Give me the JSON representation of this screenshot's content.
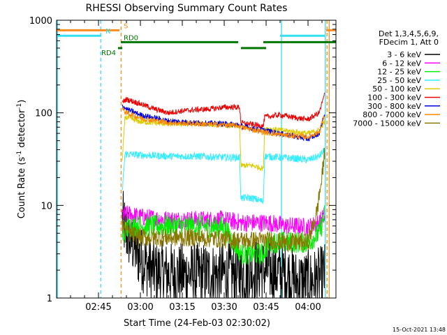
{
  "chart_data": {
    "type": "line",
    "title": "RHESSI Observing Summary Count Rates",
    "xlabel": "Start Time (24-Feb-03 02:30:02)",
    "ylabel_main": "Count Rate (s",
    "ylabel_sup1": "-1",
    "ylabel_mid": " detector",
    "ylabel_sup2": "-1",
    "ylabel_end": ")",
    "yscale": "log",
    "ylim": [
      1,
      1000
    ],
    "xlim_minutes": [
      0,
      100
    ],
    "x_ticks": [
      {
        "label": "02:45",
        "minute": 15
      },
      {
        "label": "03:00",
        "minute": 30
      },
      {
        "label": "03:15",
        "minute": 45
      },
      {
        "label": "03:30",
        "minute": 60
      },
      {
        "label": "03:45",
        "minute": 75
      },
      {
        "label": "04:00",
        "minute": 90
      }
    ],
    "y_ticks": [
      {
        "label": "1",
        "value": 1
      },
      {
        "label": "10",
        "value": 10
      },
      {
        "label": "100",
        "value": 100
      },
      {
        "label": "1000",
        "value": 1000
      }
    ],
    "legend_header": [
      "Det 1,3,4,5,6,9,",
      "FDecim 1, Att 0"
    ],
    "timestamp": "15-Oct-2021 13:48",
    "flags": [
      {
        "label": "S",
        "color": "#ff8c1a",
        "value": 780,
        "segments": [
          [
            0,
            22.5
          ],
          [
            96.5,
            100
          ]
        ],
        "label_min": 24
      },
      {
        "label": "N",
        "color": "#33e0f0",
        "value": 680,
        "segments": [
          [
            0,
            16
          ],
          [
            80,
            96
          ]
        ],
        "label_min": 17.5
      },
      {
        "label": "RD0",
        "color": "#007700",
        "value": 580,
        "segments": [
          [
            23,
            65
          ],
          [
            74,
            100
          ]
        ],
        "label_min": 24
      },
      {
        "label": "RD4",
        "color": "#007700",
        "value": 500,
        "segments": [
          [
            22,
            23.5
          ],
          [
            66,
            75
          ]
        ],
        "label_min": 16
      }
    ],
    "vlines": [
      {
        "minute": 0.3,
        "color": "#33e0f0",
        "style": "solid"
      },
      {
        "minute": 15.8,
        "color": "#33e0f0",
        "style": "dashed"
      },
      {
        "minute": 23.1,
        "color": "#ff8c1a",
        "style": "dashed"
      },
      {
        "minute": 80.5,
        "color": "#33e0f0",
        "style": "solid"
      },
      {
        "minute": 96.2,
        "color": "#33e0f0",
        "style": "solid"
      },
      {
        "minute": 96.8,
        "color": "#ff8c1a",
        "style": "dashed"
      },
      {
        "minute": 97.6,
        "color": "#ff8c1a",
        "style": "solid"
      }
    ],
    "series": [
      {
        "name": "3 - 6 keV",
        "color": "#000000",
        "noise": 0.35,
        "points": [
          [
            23.5,
            7
          ],
          [
            25,
            5
          ],
          [
            27,
            4
          ],
          [
            29,
            3
          ],
          [
            31,
            2.5
          ],
          [
            34,
            2
          ],
          [
            40,
            1.8
          ],
          [
            50,
            1.8
          ],
          [
            60,
            1.8
          ],
          [
            66,
            1.8
          ],
          [
            70,
            2
          ],
          [
            76,
            2
          ],
          [
            82,
            1.8
          ],
          [
            86,
            1.5
          ],
          [
            90,
            1.5
          ],
          [
            94,
            1.6
          ],
          [
            96,
            1.8
          ]
        ]
      },
      {
        "name": "6 - 12 keV",
        "color": "#ff00ff",
        "noise": 0.1,
        "points": [
          [
            23.5,
            8
          ],
          [
            26,
            8
          ],
          [
            30,
            7.5
          ],
          [
            40,
            7
          ],
          [
            50,
            7
          ],
          [
            60,
            7
          ],
          [
            66,
            6.5
          ],
          [
            70,
            6.5
          ],
          [
            76,
            6.5
          ],
          [
            82,
            6
          ],
          [
            86,
            6
          ],
          [
            90,
            5.8
          ],
          [
            94,
            6.5
          ],
          [
            96,
            8
          ]
        ]
      },
      {
        "name": "12 - 25 keV",
        "color": "#00ee00",
        "noise": 0.12,
        "points": [
          [
            23.5,
            4.5
          ],
          [
            26,
            6
          ],
          [
            30,
            6
          ],
          [
            40,
            6
          ],
          [
            50,
            6
          ],
          [
            60,
            5.8
          ],
          [
            66,
            3
          ],
          [
            70,
            3
          ],
          [
            74,
            3
          ],
          [
            76,
            4
          ],
          [
            82,
            4
          ],
          [
            86,
            4
          ],
          [
            90,
            4
          ],
          [
            94,
            5
          ],
          [
            96,
            8
          ]
        ]
      },
      {
        "name": "25 - 50 keV",
        "color": "#33eeff",
        "noise": 0.04,
        "points": [
          [
            23.5,
            14
          ],
          [
            24.5,
            36
          ],
          [
            30,
            35
          ],
          [
            40,
            34
          ],
          [
            50,
            34
          ],
          [
            60,
            33
          ],
          [
            65.5,
            33
          ],
          [
            66,
            12
          ],
          [
            70,
            12
          ],
          [
            74,
            11
          ],
          [
            74.5,
            34
          ],
          [
            80,
            33
          ],
          [
            86,
            32
          ],
          [
            90,
            31
          ],
          [
            94,
            34
          ],
          [
            96,
            40
          ]
        ]
      },
      {
        "name": "50 - 100 keV",
        "color": "#ddcc00",
        "noise": 0.03,
        "points": [
          [
            23.5,
            30
          ],
          [
            24.5,
            90
          ],
          [
            30,
            80
          ],
          [
            40,
            76
          ],
          [
            50,
            76
          ],
          [
            60,
            74
          ],
          [
            65.5,
            72
          ],
          [
            66,
            27
          ],
          [
            70,
            27
          ],
          [
            74,
            25
          ],
          [
            74.5,
            68
          ],
          [
            80,
            65
          ],
          [
            86,
            62
          ],
          [
            90,
            60
          ],
          [
            94,
            65
          ],
          [
            96,
            80
          ]
        ]
      },
      {
        "name": "100 - 300 keV",
        "color": "#ee0000",
        "noise": 0.03,
        "points": [
          [
            23.5,
            130
          ],
          [
            25,
            140
          ],
          [
            30,
            125
          ],
          [
            35,
            110
          ],
          [
            40,
            100
          ],
          [
            45,
            105
          ],
          [
            50,
            108
          ],
          [
            55,
            110
          ],
          [
            60,
            115
          ],
          [
            65.5,
            115
          ],
          [
            66,
            78
          ],
          [
            70,
            75
          ],
          [
            74,
            72
          ],
          [
            74.5,
            90
          ],
          [
            80,
            95
          ],
          [
            86,
            88
          ],
          [
            90,
            85
          ],
          [
            94,
            100
          ],
          [
            96,
            160
          ]
        ]
      },
      {
        "name": "300 - 800 keV",
        "color": "#0000dd",
        "noise": 0.03,
        "points": [
          [
            23.5,
            120
          ],
          [
            25,
            110
          ],
          [
            30,
            95
          ],
          [
            40,
            82
          ],
          [
            50,
            78
          ],
          [
            60,
            76
          ],
          [
            65.5,
            74
          ],
          [
            66,
            72
          ],
          [
            70,
            68
          ],
          [
            74,
            65
          ],
          [
            80,
            60
          ],
          [
            86,
            55
          ],
          [
            90,
            52
          ],
          [
            94,
            60
          ],
          [
            96,
            100
          ]
        ]
      },
      {
        "name": "800 - 7000 keV",
        "color": "#ff8800",
        "noise": 0.03,
        "points": [
          [
            23.5,
            110
          ],
          [
            25,
            100
          ],
          [
            30,
            88
          ],
          [
            40,
            78
          ],
          [
            50,
            76
          ],
          [
            60,
            74
          ],
          [
            65.5,
            72
          ],
          [
            66,
            70
          ],
          [
            70,
            66
          ],
          [
            74,
            62
          ],
          [
            80,
            58
          ],
          [
            86,
            56
          ],
          [
            90,
            55
          ],
          [
            94,
            62
          ],
          [
            96,
            95
          ]
        ]
      },
      {
        "name": "7000 - 15000 keV",
        "color": "#887700",
        "noise": 0.1,
        "points": [
          [
            23.5,
            6
          ],
          [
            26,
            5
          ],
          [
            30,
            4.5
          ],
          [
            40,
            4.5
          ],
          [
            50,
            4.5
          ],
          [
            60,
            4.3
          ],
          [
            66,
            4.2
          ],
          [
            70,
            4.2
          ],
          [
            76,
            4.2
          ],
          [
            82,
            4
          ],
          [
            86,
            4
          ],
          [
            90,
            4
          ],
          [
            93,
            8
          ],
          [
            95,
            20
          ],
          [
            96,
            40
          ]
        ]
      }
    ]
  }
}
